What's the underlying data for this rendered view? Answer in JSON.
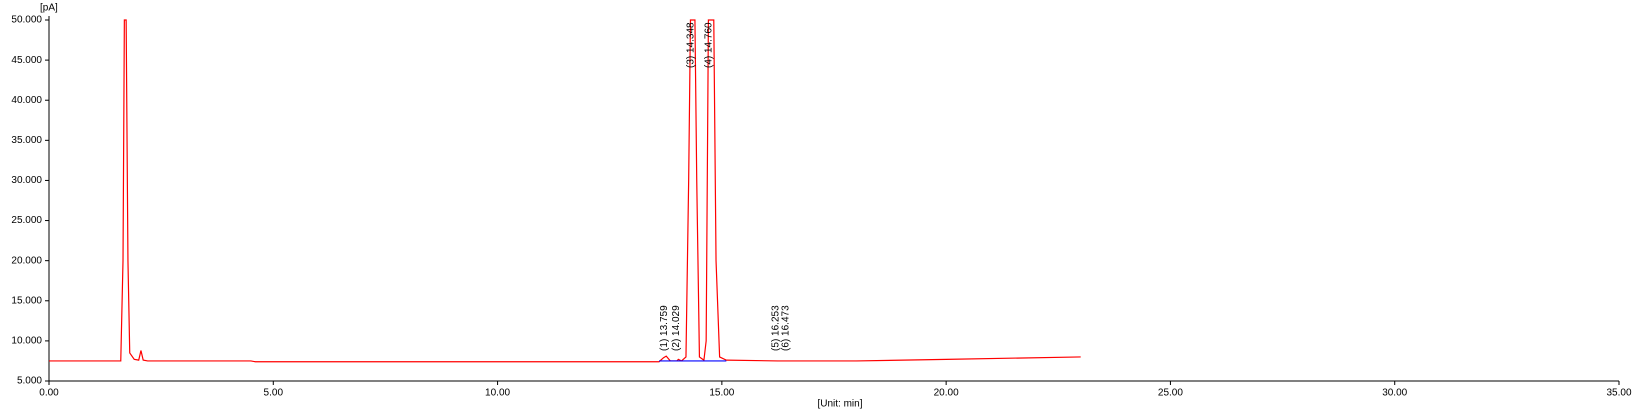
{
  "chart_data": {
    "type": "line",
    "ylabel": "[pA]",
    "xlabel": "[Unit: min]",
    "xlim": [
      0,
      35
    ],
    "ylim": [
      5,
      50
    ],
    "xticks": [
      {
        "value": 0,
        "label": "0.00"
      },
      {
        "value": 5,
        "label": "5.00"
      },
      {
        "value": 10,
        "label": "10.00"
      },
      {
        "value": 15,
        "label": "15.00"
      },
      {
        "value": 20,
        "label": "20.00"
      },
      {
        "value": 25,
        "label": "25.00"
      },
      {
        "value": 30,
        "label": "30.00"
      },
      {
        "value": 35,
        "label": "35.00"
      }
    ],
    "yticks": [
      {
        "value": 5,
        "label": "5.000"
      },
      {
        "value": 10,
        "label": "10.000"
      },
      {
        "value": 15,
        "label": "15.000"
      },
      {
        "value": 20,
        "label": "20.000"
      },
      {
        "value": 25,
        "label": "25.000"
      },
      {
        "value": 30,
        "label": "30.000"
      },
      {
        "value": 35,
        "label": "35.000"
      },
      {
        "value": 40,
        "label": "40.000"
      },
      {
        "value": 45,
        "label": "45.000"
      },
      {
        "value": 50,
        "label": "50.000"
      }
    ],
    "series": [
      {
        "color": "#0000ff",
        "x": [
          13.6,
          13.9,
          14.2,
          15.1
        ],
        "values": [
          7.5,
          7.5,
          7.5,
          7.5
        ]
      },
      {
        "color": "#ff0000",
        "x": [
          0,
          1.6,
          1.65,
          1.68,
          1.72,
          1.76,
          1.8,
          1.9,
          2.0,
          2.05,
          2.1,
          2.2,
          4.5,
          4.6,
          13.6,
          13.7,
          13.76,
          13.85,
          14.0,
          14.03,
          14.1,
          14.2,
          14.26,
          14.3,
          14.4,
          14.44,
          14.5,
          14.6,
          14.65,
          14.7,
          14.82,
          14.87,
          14.95,
          15.1,
          16.25,
          16.47,
          18,
          20,
          23
        ],
        "values": [
          7.5,
          7.5,
          20,
          50,
          50,
          20,
          8.5,
          7.7,
          7.6,
          8.8,
          7.6,
          7.5,
          7.5,
          7.4,
          7.4,
          7.9,
          8.1,
          7.5,
          7.5,
          7.7,
          7.5,
          8,
          30,
          50,
          50,
          30,
          8,
          7.6,
          10,
          50,
          50,
          20,
          8,
          7.6,
          7.5,
          7.5,
          7.5,
          7.7,
          8.0
        ]
      }
    ],
    "peaks": [
      {
        "label": "(1) 13.759",
        "x": 13.759
      },
      {
        "label": "(2) 14.029",
        "x": 14.029
      },
      {
        "label": "(3) 14.348",
        "x": 14.348
      },
      {
        "label": "(4) 14.760",
        "x": 14.76
      },
      {
        "label": "(5) 16.253",
        "x": 16.253
      },
      {
        "label": "(6) 16.473",
        "x": 16.473
      }
    ]
  }
}
